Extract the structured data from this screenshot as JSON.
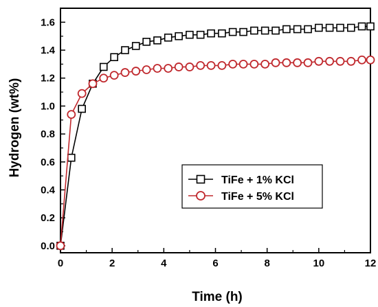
{
  "chart_data": {
    "type": "line",
    "title": "",
    "xlabel": "Time (h)",
    "ylabel": "Hydrogen (wt%)",
    "xlim": [
      0,
      12
    ],
    "ylim": [
      -0.05,
      1.7
    ],
    "x_ticks": [
      0,
      2,
      4,
      6,
      8,
      10,
      12
    ],
    "y_ticks": [
      0.0,
      0.2,
      0.4,
      0.6,
      0.8,
      1.0,
      1.2,
      1.4,
      1.6
    ],
    "x_tick_labels": [
      "0",
      "2",
      "4",
      "6",
      "8",
      "10",
      "12"
    ],
    "y_tick_labels": [
      "0.0",
      "0.2",
      "0.4",
      "0.6",
      "0.8",
      "1.0",
      "1.2",
      "1.4",
      "1.6"
    ],
    "grid": false,
    "legend_position": "center-right",
    "series": [
      {
        "name": "TiFe + 1% KCl",
        "color": "#000000",
        "marker": "square",
        "x": [
          0,
          0.42,
          0.83,
          1.25,
          1.67,
          2.08,
          2.5,
          2.92,
          3.33,
          3.75,
          4.17,
          4.58,
          5.0,
          5.42,
          5.83,
          6.25,
          6.67,
          7.08,
          7.5,
          7.92,
          8.33,
          8.75,
          9.17,
          9.58,
          10.0,
          10.42,
          10.83,
          11.25,
          11.67,
          12.0
        ],
        "y": [
          0.0,
          0.63,
          0.98,
          1.16,
          1.28,
          1.35,
          1.4,
          1.43,
          1.46,
          1.47,
          1.49,
          1.5,
          1.51,
          1.51,
          1.52,
          1.52,
          1.53,
          1.53,
          1.54,
          1.54,
          1.54,
          1.55,
          1.55,
          1.55,
          1.56,
          1.56,
          1.56,
          1.56,
          1.57,
          1.57
        ]
      },
      {
        "name": "TiFe + 5% KCl",
        "color": "#c0282d",
        "marker": "circle",
        "x": [
          0,
          0.42,
          0.83,
          1.25,
          1.67,
          2.08,
          2.5,
          2.92,
          3.33,
          3.75,
          4.17,
          4.58,
          5.0,
          5.42,
          5.83,
          6.25,
          6.67,
          7.08,
          7.5,
          7.92,
          8.33,
          8.75,
          9.17,
          9.58,
          10.0,
          10.42,
          10.83,
          11.25,
          11.67,
          12.0
        ],
        "y": [
          0.0,
          0.94,
          1.09,
          1.16,
          1.2,
          1.22,
          1.24,
          1.25,
          1.26,
          1.27,
          1.27,
          1.28,
          1.28,
          1.29,
          1.29,
          1.29,
          1.3,
          1.3,
          1.3,
          1.3,
          1.31,
          1.31,
          1.31,
          1.31,
          1.32,
          1.32,
          1.32,
          1.32,
          1.33,
          1.33
        ]
      }
    ]
  }
}
